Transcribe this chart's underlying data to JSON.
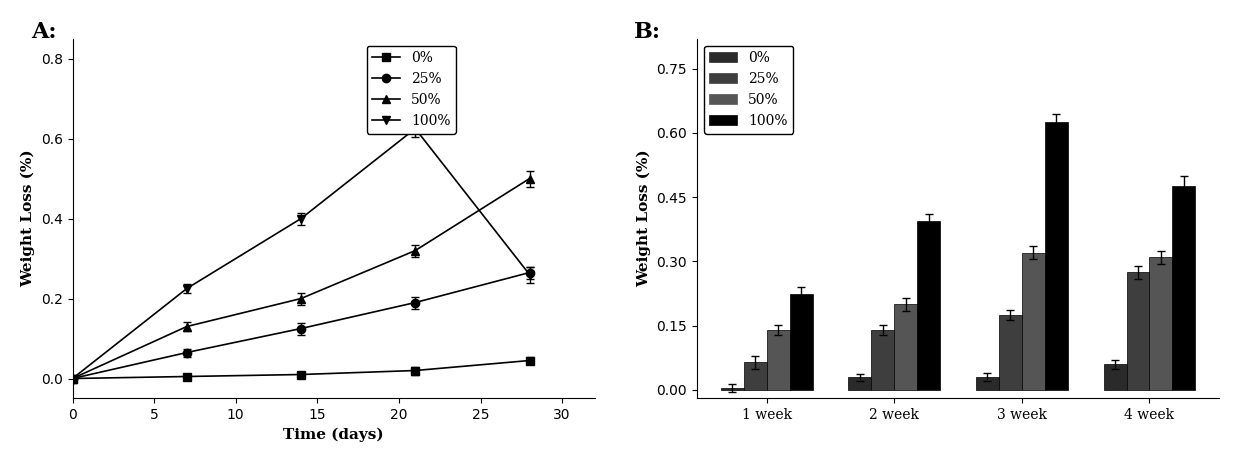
{
  "panel_A": {
    "title": "A:",
    "xlabel": "Time (days)",
    "ylabel": "Weight Loss (%)",
    "xlim": [
      0,
      32
    ],
    "ylim": [
      -0.05,
      0.85
    ],
    "yticks": [
      0.0,
      0.2,
      0.4,
      0.6,
      0.8
    ],
    "xticks": [
      0,
      5,
      10,
      15,
      20,
      25,
      30
    ],
    "x": [
      0,
      7,
      14,
      21,
      28
    ],
    "series": [
      {
        "label": "0%",
        "marker": "s",
        "y": [
          0.0,
          0.005,
          0.01,
          0.02,
          0.045
        ],
        "yerr": [
          0.0,
          0.005,
          0.005,
          0.01,
          0.008
        ]
      },
      {
        "label": "25%",
        "marker": "o",
        "y": [
          0.0,
          0.065,
          0.125,
          0.19,
          0.265
        ],
        "yerr": [
          0.0,
          0.01,
          0.015,
          0.015,
          0.015
        ]
      },
      {
        "label": "50%",
        "marker": "^",
        "y": [
          0.0,
          0.13,
          0.2,
          0.32,
          0.5
        ],
        "yerr": [
          0.0,
          0.012,
          0.015,
          0.015,
          0.02
        ]
      },
      {
        "label": "100%",
        "marker": "v",
        "y": [
          0.0,
          0.225,
          0.4,
          0.625,
          0.26
        ],
        "yerr": [
          0.0,
          0.012,
          0.015,
          0.02,
          0.02
        ]
      }
    ]
  },
  "panel_B": {
    "title": "B:",
    "ylabel": "Weight Loss (%)",
    "ylim": [
      -0.02,
      0.82
    ],
    "yticks": [
      0.0,
      0.15,
      0.3,
      0.45,
      0.6,
      0.75
    ],
    "categories": [
      "1 week",
      "2 week",
      "3 week",
      "4 week"
    ],
    "legend_labels": [
      "0%",
      "25%",
      "50%",
      "100%"
    ],
    "bar_width": 0.18,
    "bar_colors": [
      "#2a2a2a",
      "#3e3e3e",
      "#555555",
      "#000000"
    ],
    "groups": [
      {
        "label": "1 week",
        "values": [
          0.005,
          0.065,
          0.14,
          0.225
        ],
        "yerr": [
          0.01,
          0.015,
          0.012,
          0.015
        ]
      },
      {
        "label": "2 week",
        "values": [
          0.03,
          0.14,
          0.2,
          0.395
        ],
        "yerr": [
          0.008,
          0.012,
          0.015,
          0.015
        ]
      },
      {
        "label": "3 week",
        "values": [
          0.03,
          0.175,
          0.32,
          0.625
        ],
        "yerr": [
          0.01,
          0.012,
          0.015,
          0.018
        ]
      },
      {
        "label": "4 week",
        "values": [
          0.06,
          0.275,
          0.31,
          0.475
        ],
        "yerr": [
          0.01,
          0.015,
          0.015,
          0.025
        ]
      }
    ]
  },
  "line_color": "#000000",
  "marker_size": 6,
  "capsize": 3,
  "elinewidth": 1.0,
  "linewidth": 1.2,
  "font_family": "serif",
  "label_fontsize": 11,
  "tick_fontsize": 10,
  "legend_fontsize": 10
}
